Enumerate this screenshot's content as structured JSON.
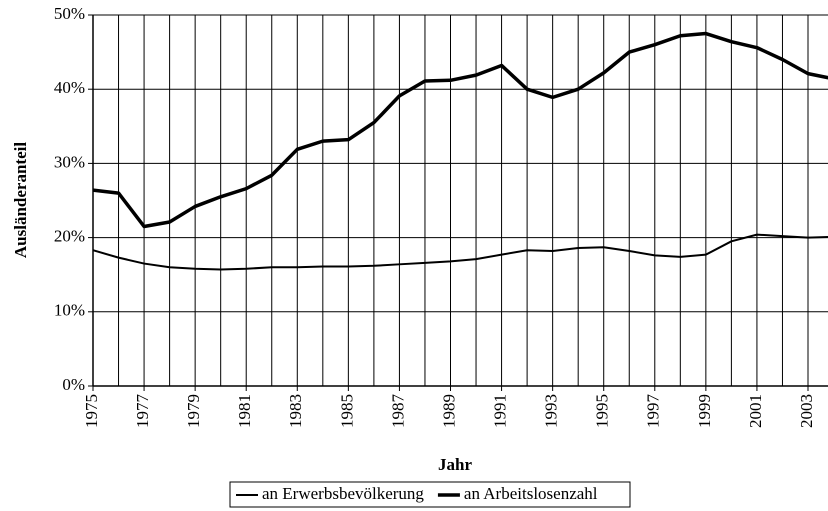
{
  "chart_data": {
    "type": "line",
    "x_label": "Jahr",
    "y_label": "Ausländeranteil",
    "x": [
      1975,
      1976,
      1977,
      1978,
      1979,
      1980,
      1981,
      1982,
      1983,
      1984,
      1985,
      1986,
      1987,
      1988,
      1989,
      1990,
      1991,
      1992,
      1993,
      1994,
      1995,
      1996,
      1997,
      1998,
      1999,
      2000,
      2001,
      2002,
      2003,
      2004
    ],
    "series": [
      {
        "name": "an Erwerbsbevölkerung",
        "color": "#000000",
        "width": 2,
        "values": [
          18.3,
          17.3,
          16.5,
          16.0,
          15.8,
          15.7,
          15.8,
          16.0,
          16.0,
          16.1,
          16.1,
          16.2,
          16.4,
          16.6,
          16.8,
          17.1,
          17.7,
          18.3,
          18.2,
          18.6,
          18.7,
          18.2,
          17.6,
          17.4,
          17.7,
          19.5,
          20.4,
          20.2,
          20.0,
          20.1
        ]
      },
      {
        "name": "an Arbeitslosenzahl",
        "color": "#000000",
        "width": 3.5,
        "values": [
          26.4,
          26.0,
          21.5,
          22.1,
          24.2,
          25.5,
          26.6,
          28.4,
          31.9,
          33.0,
          33.2,
          35.5,
          39.1,
          41.1,
          41.2,
          41.9,
          43.2,
          40.0,
          38.9,
          40.0,
          42.2,
          45.0,
          46.0,
          47.2,
          47.5,
          46.4,
          45.6,
          44.0,
          42.1,
          41.4
        ]
      }
    ],
    "xlim": [
      1975,
      2004
    ],
    "xticks": [
      1975,
      1977,
      1979,
      1981,
      1983,
      1985,
      1987,
      1989,
      1991,
      1993,
      1995,
      1997,
      1999,
      2001,
      2003
    ],
    "ylim": [
      0,
      50
    ],
    "yticks": [
      {
        "value": 0,
        "label": "0%"
      },
      {
        "value": 10,
        "label": "10%"
      },
      {
        "value": 20,
        "label": "20%"
      },
      {
        "value": 30,
        "label": "30%"
      },
      {
        "value": 40,
        "label": "40%"
      },
      {
        "value": 50,
        "label": "50%"
      }
    ],
    "grid": true,
    "legend": "bottom"
  }
}
